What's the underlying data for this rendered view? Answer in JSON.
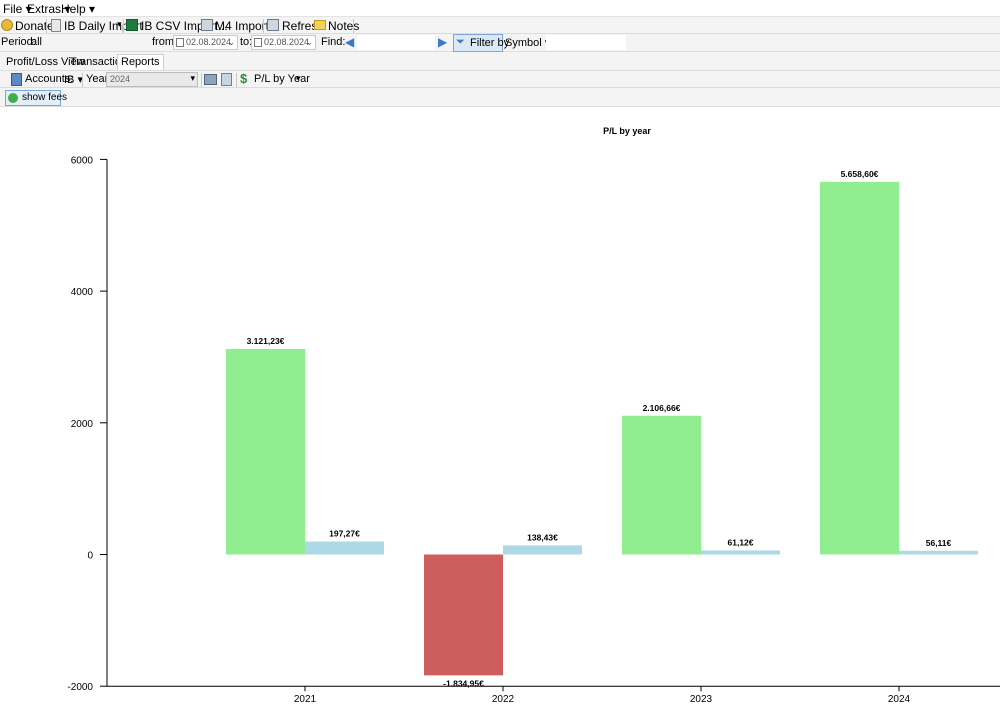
{
  "menu": {
    "file": "File",
    "extras": "Extras",
    "help": "Help"
  },
  "toolbar": {
    "donate": "Donate",
    "ib_daily_import": "IB Daily Import",
    "ib_csv_import": "IB CSV Import...",
    "m4_import": "M4 Import...",
    "refresh": "Refresh",
    "notes": "Notes"
  },
  "filter": {
    "period_label": "Period:",
    "period_value": "all",
    "from_label": "from:",
    "from_date": "02.08.2024",
    "to_label": "to:",
    "to_date": "02.08.2024",
    "find_label": "Find:",
    "find_value": "",
    "filter_by_label": "Filter by",
    "filter_field": "Symbol"
  },
  "tabs": [
    "Profit/Loss View",
    "Transactions",
    "Reports"
  ],
  "reports_toolbar": {
    "accounts_label": "Accounts:",
    "accounts_value": "IB",
    "year_label": "Year:",
    "year_value": "2024",
    "report_type": "P/L by Year"
  },
  "show_fees_label": "show fees",
  "colors": {
    "profit": "#90ee90",
    "loss": "#cd5c5c",
    "fees": "#add8e6"
  },
  "chart_data": {
    "type": "bar",
    "title": "P/L by year",
    "categories": [
      "2021",
      "2022",
      "2023",
      "2024"
    ],
    "series": [
      {
        "values": [
          3121.23,
          -1834.95,
          2106.66,
          5658.6
        ],
        "labels": [
          "3.121,23€",
          "-1.834,95€",
          "2.106,66€",
          "5.658,60€"
        ]
      },
      {
        "values": [
          197.27,
          138.43,
          61.12,
          56.11
        ],
        "labels": [
          "197,27€",
          "138,43€",
          "61,12€",
          "56,11€"
        ]
      }
    ],
    "yticks": [
      "6000",
      "4000",
      "2000",
      "0",
      "-2000"
    ],
    "ylim": [
      -2000,
      6000
    ],
    "grid": false,
    "legend": "none"
  }
}
